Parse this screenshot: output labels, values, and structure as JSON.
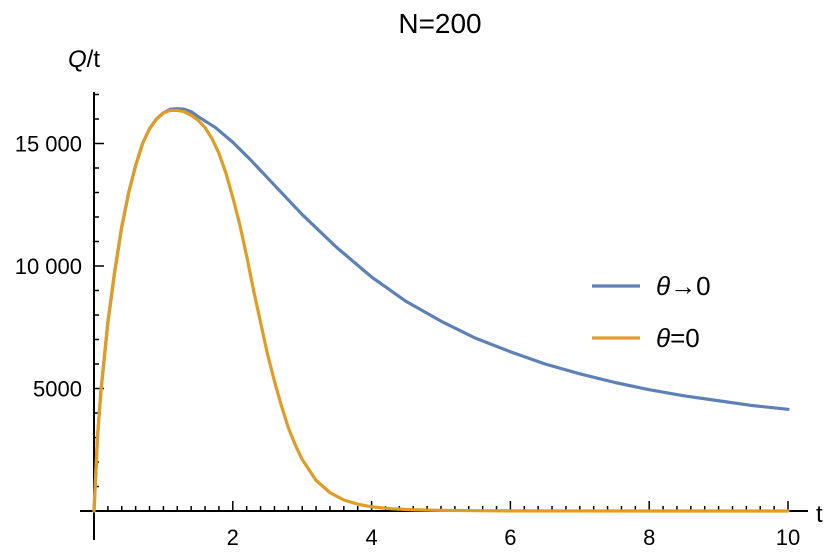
{
  "chart_data": {
    "type": "line",
    "title": "N=200",
    "xlabel": "t",
    "ylabel": "Q/t",
    "xlim": [
      0,
      10
    ],
    "ylim": [
      0,
      17000
    ],
    "xticks": [
      2,
      4,
      6,
      8,
      10
    ],
    "xtick_labels": [
      "2",
      "4",
      "6",
      "8",
      "10"
    ],
    "yticks": [
      5000,
      10000,
      15000
    ],
    "ytick_labels": [
      "5000",
      "10 000",
      "15 000"
    ],
    "grid": false,
    "legend_position": "right",
    "series": [
      {
        "name": "θ→0",
        "color": "#5e81b5",
        "x": [
          0,
          0.05,
          0.1,
          0.2,
          0.3,
          0.4,
          0.5,
          0.6,
          0.7,
          0.8,
          0.9,
          1.0,
          1.1,
          1.2,
          1.3,
          1.4,
          1.5,
          1.75,
          2.0,
          2.25,
          2.5,
          2.75,
          3.0,
          3.5,
          4.0,
          4.5,
          5.0,
          5.5,
          6.0,
          6.5,
          7.0,
          7.5,
          8.0,
          8.5,
          9.0,
          9.5,
          10.0
        ],
        "y": [
          0,
          3000,
          4900,
          7700,
          9800,
          11600,
          13000,
          14100,
          15000,
          15600,
          16000,
          16250,
          16400,
          16420,
          16400,
          16300,
          16100,
          15650,
          15050,
          14350,
          13600,
          12850,
          12100,
          10750,
          9550,
          8550,
          7750,
          7050,
          6500,
          6000,
          5600,
          5250,
          4950,
          4700,
          4500,
          4300,
          4150
        ]
      },
      {
        "name": "θ=0",
        "color": "#e19c24",
        "x": [
          0,
          0.05,
          0.1,
          0.2,
          0.3,
          0.4,
          0.5,
          0.6,
          0.7,
          0.8,
          0.9,
          1.0,
          1.1,
          1.2,
          1.3,
          1.4,
          1.5,
          1.6,
          1.7,
          1.8,
          1.9,
          2.0,
          2.1,
          2.2,
          2.3,
          2.4,
          2.5,
          2.6,
          2.7,
          2.8,
          2.9,
          3.0,
          3.2,
          3.4,
          3.6,
          3.8,
          4.0,
          4.3,
          4.6,
          5.0,
          5.5,
          6.0,
          7.0,
          8.0,
          9.0,
          10.0
        ],
        "y": [
          0,
          3000,
          4900,
          7700,
          9800,
          11600,
          13000,
          14100,
          15000,
          15600,
          16000,
          16250,
          16350,
          16350,
          16300,
          16150,
          15950,
          15650,
          15200,
          14600,
          13800,
          12800,
          11700,
          10400,
          9000,
          7700,
          6400,
          5300,
          4300,
          3400,
          2700,
          2100,
          1250,
          750,
          450,
          280,
          170,
          90,
          50,
          25,
          12,
          6,
          3,
          1,
          0,
          0
        ]
      }
    ]
  }
}
